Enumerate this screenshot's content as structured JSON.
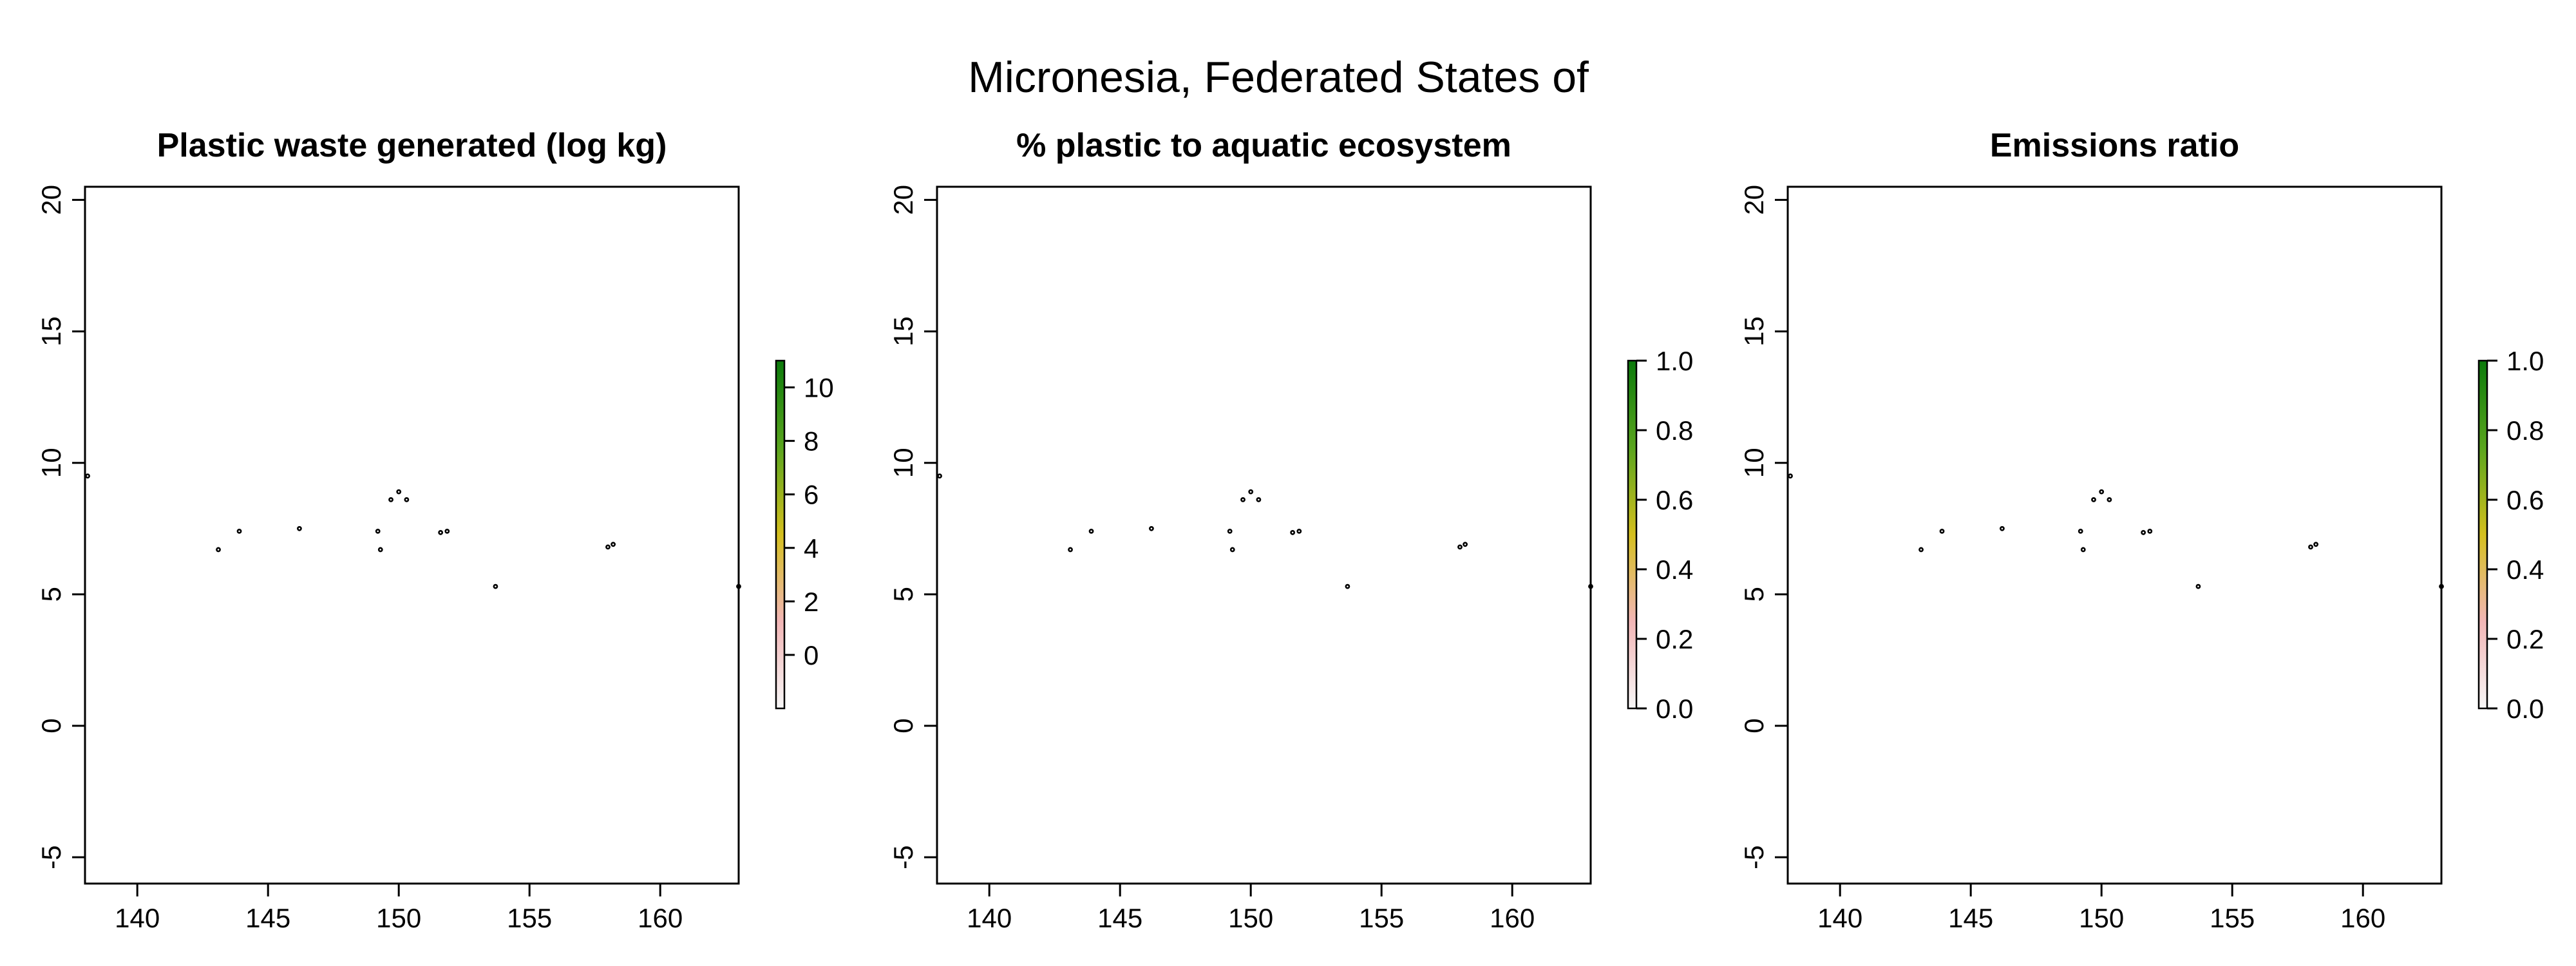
{
  "figure_title": "Micronesia, Federated States of",
  "chart_data": [
    {
      "type": "map",
      "title": "Plastic waste generated (log kg)",
      "xlim": [
        138,
        163
      ],
      "ylim": [
        -6,
        20.5
      ],
      "xticks": [
        140,
        145,
        150,
        155,
        160
      ],
      "yticks": [
        -5,
        0,
        5,
        10,
        15,
        20
      ],
      "colorbar": {
        "range": [
          -2,
          11
        ],
        "ticks": [
          0,
          2,
          4,
          6,
          8,
          10
        ],
        "colors": [
          "#f7f7f7",
          "#f2b6b6",
          "#d4bf1e",
          "#5aa51e",
          "#0b7a0b"
        ]
      }
    },
    {
      "type": "map",
      "title": "% plastic to aquatic ecosystem",
      "xlim": [
        138,
        163
      ],
      "ylim": [
        -6,
        20.5
      ],
      "xticks": [
        140,
        145,
        150,
        155,
        160
      ],
      "yticks": [
        -5,
        0,
        5,
        10,
        15,
        20
      ],
      "colorbar": {
        "range": [
          0,
          1
        ],
        "ticks": [
          "0.0",
          "0.2",
          "0.4",
          "0.6",
          "0.8",
          "1.0"
        ],
        "colors": [
          "#f7f7f7",
          "#f2b6b6",
          "#d4bf1e",
          "#5aa51e",
          "#0b7a0b"
        ]
      }
    },
    {
      "type": "map",
      "title": "Emissions ratio",
      "xlim": [
        138,
        163
      ],
      "ylim": [
        -6,
        20.5
      ],
      "xticks": [
        140,
        145,
        150,
        155,
        160
      ],
      "yticks": [
        -5,
        0,
        5,
        10,
        15,
        20
      ],
      "colorbar": {
        "range": [
          0,
          1
        ],
        "ticks": [
          "0.0",
          "0.2",
          "0.4",
          "0.6",
          "0.8",
          "1.0"
        ],
        "colors": [
          "#f7f7f7",
          "#f2b6b6",
          "#d4bf1e",
          "#5aa51e",
          "#0b7a0b"
        ]
      }
    }
  ],
  "islands": [
    {
      "lon": 138.1,
      "lat": 9.5
    },
    {
      "lon": 143.1,
      "lat": 6.7
    },
    {
      "lon": 143.9,
      "lat": 7.4
    },
    {
      "lon": 146.2,
      "lat": 7.5
    },
    {
      "lon": 149.2,
      "lat": 7.4
    },
    {
      "lon": 149.3,
      "lat": 6.7
    },
    {
      "lon": 149.7,
      "lat": 8.6
    },
    {
      "lon": 150.0,
      "lat": 8.9
    },
    {
      "lon": 150.3,
      "lat": 8.6
    },
    {
      "lon": 151.6,
      "lat": 7.35
    },
    {
      "lon": 151.85,
      "lat": 7.4
    },
    {
      "lon": 153.7,
      "lat": 5.3
    },
    {
      "lon": 158.0,
      "lat": 6.8
    },
    {
      "lon": 158.2,
      "lat": 6.9
    },
    {
      "lon": 163.0,
      "lat": 5.3
    }
  ]
}
